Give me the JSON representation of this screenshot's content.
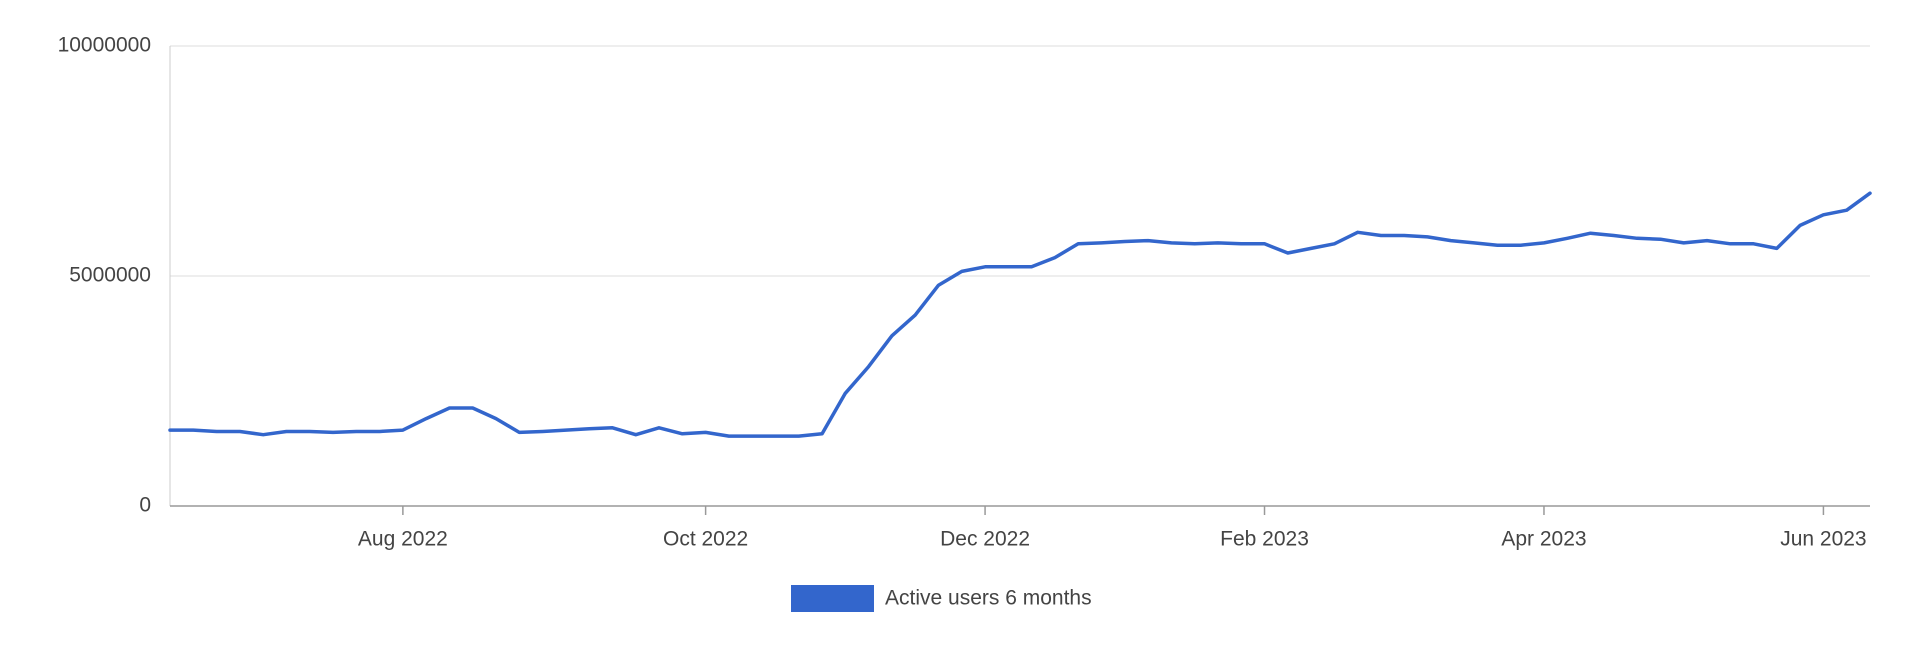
{
  "chart_data": {
    "type": "line",
    "categories": [
      null,
      null,
      null,
      null,
      null,
      null,
      null,
      null,
      null,
      null,
      "Aug 2022",
      null,
      null,
      null,
      null,
      null,
      null,
      null,
      null,
      null,
      null,
      null,
      null,
      "Oct 2022",
      null,
      null,
      null,
      null,
      null,
      null,
      null,
      null,
      null,
      null,
      null,
      "Dec 2022",
      null,
      null,
      null,
      null,
      null,
      null,
      null,
      null,
      null,
      null,
      null,
      "Feb 2023",
      null,
      null,
      null,
      null,
      null,
      null,
      null,
      null,
      null,
      null,
      null,
      "Apr 2023",
      null,
      null,
      null,
      null,
      null,
      null,
      null,
      null,
      null,
      null,
      null,
      "Jun 2023",
      null,
      null
    ],
    "series": [
      {
        "name": "Active users 6 months",
        "color": "#3366cc",
        "values": [
          1650000,
          1650000,
          1620000,
          1620000,
          1550000,
          1620000,
          1620000,
          1600000,
          1620000,
          1620000,
          1650000,
          1900000,
          2130000,
          2130000,
          1900000,
          1600000,
          1620000,
          1650000,
          1680000,
          1700000,
          1550000,
          1700000,
          1570000,
          1600000,
          1520000,
          1520000,
          1520000,
          1520000,
          1570000,
          2450000,
          3030000,
          3700000,
          4150000,
          4800000,
          5100000,
          5200000,
          5200000,
          5200000,
          5400000,
          5700000,
          5720000,
          5750000,
          5770000,
          5720000,
          5700000,
          5720000,
          5700000,
          5700000,
          5500000,
          5600000,
          5700000,
          5950000,
          5880000,
          5880000,
          5850000,
          5770000,
          5720000,
          5670000,
          5670000,
          5720000,
          5820000,
          5930000,
          5880000,
          5820000,
          5800000,
          5720000,
          5770000,
          5700000,
          5700000,
          5600000,
          6100000,
          6330000,
          6430000,
          6800000
        ]
      }
    ],
    "ylim": [
      0,
      10000000
    ],
    "yticks": [
      0,
      5000000,
      10000000
    ],
    "grid": true,
    "legend": "bottom"
  }
}
